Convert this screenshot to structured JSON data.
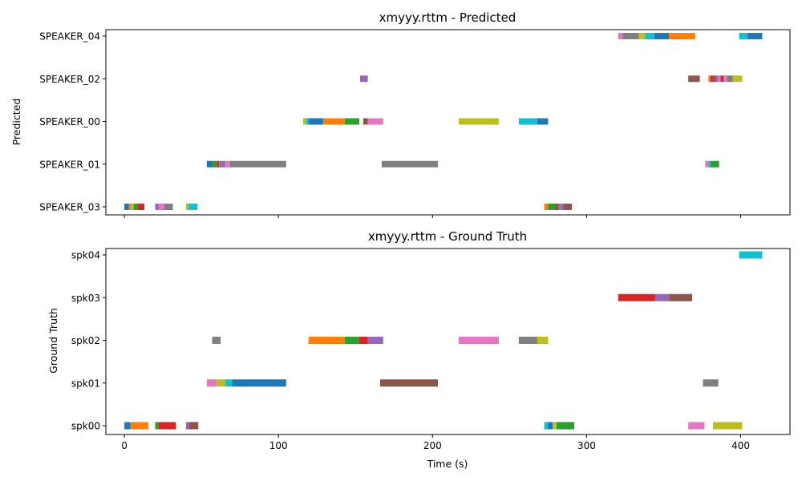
{
  "chart_data": [
    {
      "type": "timeline",
      "title": "xmyyy.rttm - Predicted",
      "xlabel": "",
      "ylabel": "Predicted",
      "xlim": [
        -12,
        432
      ],
      "xticks": [
        0,
        100,
        200,
        300,
        400
      ],
      "x_ticklabels_shown": false,
      "rows": [
        "SPEAKER_03",
        "SPEAKER_01",
        "SPEAKER_00",
        "SPEAKER_02",
        "SPEAKER_04"
      ],
      "segments": [
        {
          "row": "SPEAKER_04",
          "start": 320.5,
          "end": 323.5,
          "color": "#e377c2"
        },
        {
          "row": "SPEAKER_04",
          "start": 323.5,
          "end": 334,
          "color": "#7f7f7f"
        },
        {
          "row": "SPEAKER_04",
          "start": 334,
          "end": 338,
          "color": "#bcbd22"
        },
        {
          "row": "SPEAKER_04",
          "start": 338,
          "end": 344,
          "color": "#17becf"
        },
        {
          "row": "SPEAKER_04",
          "start": 344,
          "end": 353.5,
          "color": "#1f77b4"
        },
        {
          "row": "SPEAKER_04",
          "start": 353.5,
          "end": 370.5,
          "color": "#ff7f0e"
        },
        {
          "row": "SPEAKER_04",
          "start": 399,
          "end": 404.5,
          "color": "#17becf"
        },
        {
          "row": "SPEAKER_04",
          "start": 404.5,
          "end": 414,
          "color": "#1f77b4"
        },
        {
          "row": "SPEAKER_02",
          "start": 153,
          "end": 158,
          "color": "#9467bd"
        },
        {
          "row": "SPEAKER_02",
          "start": 366,
          "end": 373.5,
          "color": "#8c564b"
        },
        {
          "row": "SPEAKER_02",
          "start": 379,
          "end": 380.5,
          "color": "#ff7f0e"
        },
        {
          "row": "SPEAKER_02",
          "start": 380.5,
          "end": 382,
          "color": "#d62728"
        },
        {
          "row": "SPEAKER_02",
          "start": 382,
          "end": 384,
          "color": "#8c564b"
        },
        {
          "row": "SPEAKER_02",
          "start": 384,
          "end": 385.5,
          "color": "#9467bd"
        },
        {
          "row": "SPEAKER_02",
          "start": 385.5,
          "end": 387,
          "color": "#e377c2"
        },
        {
          "row": "SPEAKER_02",
          "start": 387,
          "end": 389,
          "color": "#d62728"
        },
        {
          "row": "SPEAKER_02",
          "start": 389,
          "end": 391,
          "color": "#e377c2"
        },
        {
          "row": "SPEAKER_02",
          "start": 391,
          "end": 395,
          "color": "#7f7f7f"
        },
        {
          "row": "SPEAKER_02",
          "start": 395,
          "end": 401,
          "color": "#bcbd22"
        },
        {
          "row": "SPEAKER_00",
          "start": 116,
          "end": 118,
          "color": "#bcbd22"
        },
        {
          "row": "SPEAKER_00",
          "start": 118,
          "end": 119.5,
          "color": "#17becf"
        },
        {
          "row": "SPEAKER_00",
          "start": 119.5,
          "end": 129,
          "color": "#1f77b4"
        },
        {
          "row": "SPEAKER_00",
          "start": 129,
          "end": 143,
          "color": "#ff7f0e"
        },
        {
          "row": "SPEAKER_00",
          "start": 143,
          "end": 152.5,
          "color": "#2ca02c"
        },
        {
          "row": "SPEAKER_00",
          "start": 155,
          "end": 158,
          "color": "#8c564b"
        },
        {
          "row": "SPEAKER_00",
          "start": 158,
          "end": 168,
          "color": "#e377c2"
        },
        {
          "row": "SPEAKER_00",
          "start": 217,
          "end": 243,
          "color": "#bcbd22"
        },
        {
          "row": "SPEAKER_00",
          "start": 256,
          "end": 268,
          "color": "#17becf"
        },
        {
          "row": "SPEAKER_00",
          "start": 268,
          "end": 275,
          "color": "#1f77b4"
        },
        {
          "row": "SPEAKER_01",
          "start": 53.5,
          "end": 57,
          "color": "#1f77b4"
        },
        {
          "row": "SPEAKER_01",
          "start": 57,
          "end": 60,
          "color": "#2ca02c"
        },
        {
          "row": "SPEAKER_01",
          "start": 60,
          "end": 61.5,
          "color": "#d62728"
        },
        {
          "row": "SPEAKER_01",
          "start": 61.5,
          "end": 63,
          "color": "#7f7f7f"
        },
        {
          "row": "SPEAKER_01",
          "start": 63,
          "end": 65.5,
          "color": "#9467bd"
        },
        {
          "row": "SPEAKER_01",
          "start": 65.5,
          "end": 68.5,
          "color": "#e377c2"
        },
        {
          "row": "SPEAKER_01",
          "start": 68.5,
          "end": 105,
          "color": "#7f7f7f"
        },
        {
          "row": "SPEAKER_01",
          "start": 167,
          "end": 203.5,
          "color": "#7f7f7f"
        },
        {
          "row": "SPEAKER_01",
          "start": 377,
          "end": 379,
          "color": "#e377c2"
        },
        {
          "row": "SPEAKER_01",
          "start": 379,
          "end": 380.5,
          "color": "#17becf"
        },
        {
          "row": "SPEAKER_01",
          "start": 380.5,
          "end": 386,
          "color": "#2ca02c"
        },
        {
          "row": "SPEAKER_03",
          "start": 0,
          "end": 3,
          "color": "#1f77b4"
        },
        {
          "row": "SPEAKER_03",
          "start": 3,
          "end": 4.5,
          "color": "#ff7f0e"
        },
        {
          "row": "SPEAKER_03",
          "start": 4.5,
          "end": 6,
          "color": "#bcbd22"
        },
        {
          "row": "SPEAKER_03",
          "start": 6,
          "end": 8.5,
          "color": "#2ca02c"
        },
        {
          "row": "SPEAKER_03",
          "start": 8.5,
          "end": 13,
          "color": "#d62728"
        },
        {
          "row": "SPEAKER_03",
          "start": 20,
          "end": 22.5,
          "color": "#9467bd"
        },
        {
          "row": "SPEAKER_03",
          "start": 22.5,
          "end": 26,
          "color": "#e377c2"
        },
        {
          "row": "SPEAKER_03",
          "start": 26,
          "end": 31.5,
          "color": "#7f7f7f"
        },
        {
          "row": "SPEAKER_03",
          "start": 40,
          "end": 41.5,
          "color": "#bcbd22"
        },
        {
          "row": "SPEAKER_03",
          "start": 41.5,
          "end": 47.5,
          "color": "#17becf"
        },
        {
          "row": "SPEAKER_03",
          "start": 272.5,
          "end": 275,
          "color": "#ff7f0e"
        },
        {
          "row": "SPEAKER_03",
          "start": 275,
          "end": 280,
          "color": "#2ca02c"
        },
        {
          "row": "SPEAKER_03",
          "start": 280,
          "end": 281.5,
          "color": "#d62728"
        },
        {
          "row": "SPEAKER_03",
          "start": 281.5,
          "end": 283.5,
          "color": "#7f7f7f"
        },
        {
          "row": "SPEAKER_03",
          "start": 283.5,
          "end": 285,
          "color": "#9467bd"
        },
        {
          "row": "SPEAKER_03",
          "start": 285,
          "end": 290.5,
          "color": "#8c564b"
        }
      ]
    },
    {
      "type": "timeline",
      "title": "xmyyy.rttm - Ground Truth",
      "xlabel": "Time (s)",
      "ylabel": "Ground Truth",
      "xlim": [
        -12,
        432
      ],
      "xticks": [
        0,
        100,
        200,
        300,
        400
      ],
      "x_ticklabels_shown": true,
      "rows": [
        "spk00",
        "spk01",
        "spk02",
        "spk03",
        "spk04"
      ],
      "segments": [
        {
          "row": "spk04",
          "start": 399,
          "end": 414,
          "color": "#17becf"
        },
        {
          "row": "spk03",
          "start": 320.5,
          "end": 344.5,
          "color": "#d62728"
        },
        {
          "row": "spk03",
          "start": 344.5,
          "end": 353.5,
          "color": "#9467bd"
        },
        {
          "row": "spk03",
          "start": 353.5,
          "end": 368.5,
          "color": "#8c564b"
        },
        {
          "row": "spk02",
          "start": 57,
          "end": 62.5,
          "color": "#7f7f7f"
        },
        {
          "row": "spk02",
          "start": 119.5,
          "end": 143,
          "color": "#ff7f0e"
        },
        {
          "row": "spk02",
          "start": 143,
          "end": 152.5,
          "color": "#2ca02c"
        },
        {
          "row": "spk02",
          "start": 152.5,
          "end": 158,
          "color": "#d62728"
        },
        {
          "row": "spk02",
          "start": 158,
          "end": 168,
          "color": "#9467bd"
        },
        {
          "row": "spk02",
          "start": 217,
          "end": 243,
          "color": "#e377c2"
        },
        {
          "row": "spk02",
          "start": 256,
          "end": 268,
          "color": "#7f7f7f"
        },
        {
          "row": "spk02",
          "start": 268,
          "end": 275,
          "color": "#bcbd22"
        },
        {
          "row": "spk01",
          "start": 53.5,
          "end": 60,
          "color": "#e377c2"
        },
        {
          "row": "spk01",
          "start": 60,
          "end": 65.5,
          "color": "#bcbd22"
        },
        {
          "row": "spk01",
          "start": 65.5,
          "end": 70,
          "color": "#17becf"
        },
        {
          "row": "spk01",
          "start": 70,
          "end": 105,
          "color": "#1f77b4"
        },
        {
          "row": "spk01",
          "start": 166,
          "end": 203.5,
          "color": "#8c564b"
        },
        {
          "row": "spk01",
          "start": 375.5,
          "end": 385.5,
          "color": "#7f7f7f"
        },
        {
          "row": "spk00",
          "start": 0,
          "end": 4,
          "color": "#1f77b4"
        },
        {
          "row": "spk00",
          "start": 4,
          "end": 15.5,
          "color": "#ff7f0e"
        },
        {
          "row": "spk00",
          "start": 20,
          "end": 22,
          "color": "#2ca02c"
        },
        {
          "row": "spk00",
          "start": 22,
          "end": 33.5,
          "color": "#d62728"
        },
        {
          "row": "spk00",
          "start": 40,
          "end": 42,
          "color": "#9467bd"
        },
        {
          "row": "spk00",
          "start": 42,
          "end": 48,
          "color": "#8c564b"
        },
        {
          "row": "spk00",
          "start": 272.5,
          "end": 275,
          "color": "#17becf"
        },
        {
          "row": "spk00",
          "start": 275,
          "end": 278,
          "color": "#1f77b4"
        },
        {
          "row": "spk00",
          "start": 278,
          "end": 280.5,
          "color": "#bcbd22"
        },
        {
          "row": "spk00",
          "start": 280.5,
          "end": 292,
          "color": "#2ca02c"
        },
        {
          "row": "spk00",
          "start": 366,
          "end": 376.5,
          "color": "#e377c2"
        },
        {
          "row": "spk00",
          "start": 382,
          "end": 401,
          "color": "#bcbd22"
        }
      ]
    }
  ]
}
